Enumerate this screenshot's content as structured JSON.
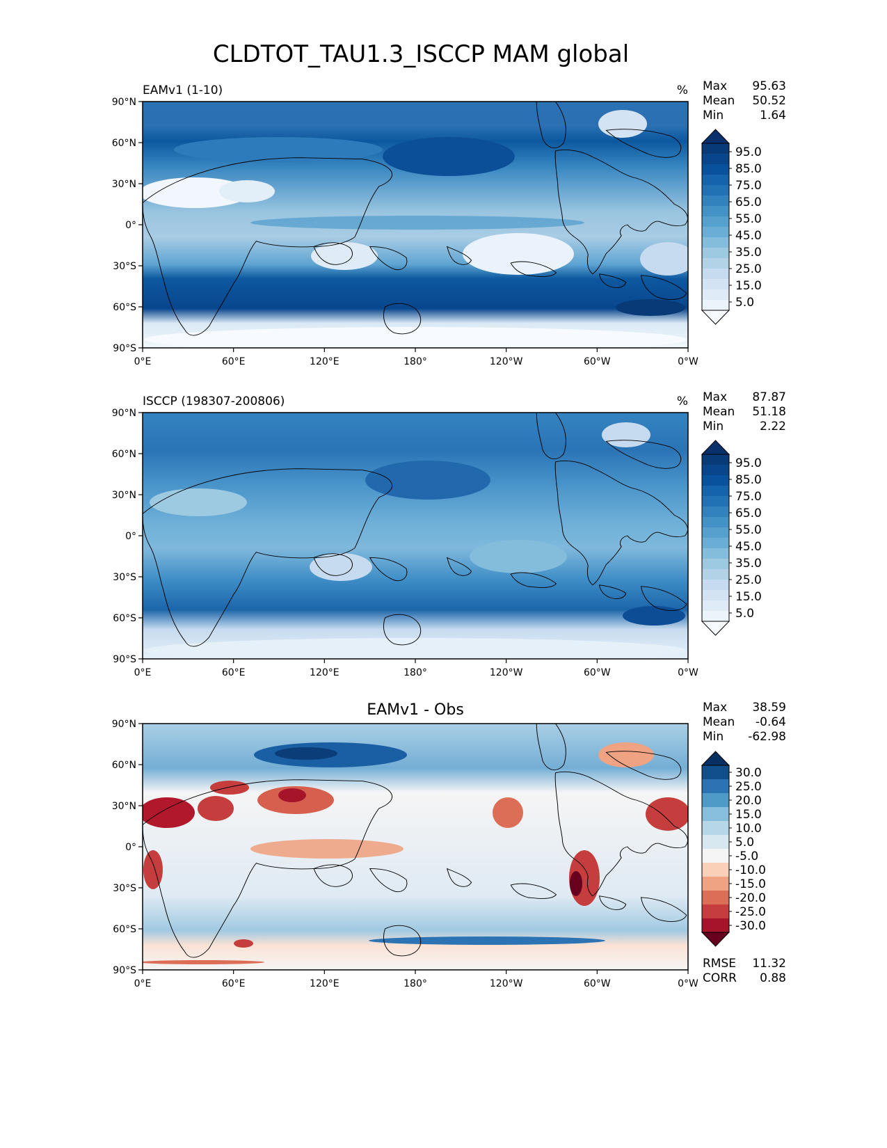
{
  "figure": {
    "title": "CLDTOT_TAU1.3_ISCCP MAM global"
  },
  "map_axes": {
    "x_ticks": [
      "0°E",
      "60°E",
      "120°E",
      "180°",
      "120°W",
      "60°W",
      "0°W"
    ],
    "y_ticks": [
      "90°N",
      "60°N",
      "30°N",
      "0°",
      "30°S",
      "60°S",
      "90°S"
    ],
    "x_range": [
      0,
      360
    ],
    "y_range": [
      -90,
      90
    ]
  },
  "chart_data": [
    {
      "type": "heatmap",
      "title_left": "EAMv1 (1-10)",
      "title_center": "",
      "units": "%",
      "stats": [
        {
          "label": "Max",
          "value": "95.63"
        },
        {
          "label": "Mean",
          "value": "50.52"
        },
        {
          "label": "Min",
          "value": "1.64"
        }
      ],
      "colorbar": {
        "levels": [
          0,
          5,
          10,
          15,
          20,
          25,
          30,
          35,
          40,
          45,
          50,
          55,
          60,
          65,
          70,
          75,
          80,
          85,
          90,
          95,
          100
        ],
        "tick_labels": [
          "95.0",
          "85.0",
          "75.0",
          "65.0",
          "55.0",
          "45.0",
          "35.0",
          "25.0",
          "15.0",
          "5.0"
        ],
        "colors": [
          "#f7fbff",
          "#ebf3fb",
          "#dfecf7",
          "#d3e3f3",
          "#c6dbef",
          "#b2d2e8",
          "#9ecae1",
          "#84bcdb",
          "#6aaed6",
          "#56a0ce",
          "#4292c6",
          "#3282be",
          "#2171b5",
          "#1563aa",
          "#08519c",
          "#08458a",
          "#083a78",
          "#08306b"
        ]
      },
      "extra_stats": []
    },
    {
      "type": "heatmap",
      "title_left": "ISCCP (198307-200806)",
      "title_center": "",
      "units": "%",
      "stats": [
        {
          "label": "Max",
          "value": "87.87"
        },
        {
          "label": "Mean",
          "value": "51.18"
        },
        {
          "label": "Min",
          "value": "2.22"
        }
      ],
      "colorbar": {
        "levels": [
          0,
          5,
          10,
          15,
          20,
          25,
          30,
          35,
          40,
          45,
          50,
          55,
          60,
          65,
          70,
          75,
          80,
          85,
          90,
          95,
          100
        ],
        "tick_labels": [
          "95.0",
          "85.0",
          "75.0",
          "65.0",
          "55.0",
          "45.0",
          "35.0",
          "25.0",
          "15.0",
          "5.0"
        ],
        "colors": [
          "#f7fbff",
          "#ebf3fb",
          "#dfecf7",
          "#d3e3f3",
          "#c6dbef",
          "#b2d2e8",
          "#9ecae1",
          "#84bcdb",
          "#6aaed6",
          "#56a0ce",
          "#4292c6",
          "#3282be",
          "#2171b5",
          "#1563aa",
          "#08519c",
          "#08458a",
          "#083a78",
          "#08306b"
        ]
      },
      "extra_stats": []
    },
    {
      "type": "heatmap",
      "title_left": "",
      "title_center": "EAMv1 - Obs",
      "units": "",
      "stats": [
        {
          "label": "Max",
          "value": "38.59"
        },
        {
          "label": "Mean",
          "value": "-0.64"
        },
        {
          "label": "Min",
          "value": "-62.98"
        }
      ],
      "colorbar": {
        "levels": [
          -35,
          -30,
          -25,
          -20,
          -15,
          -10,
          -5,
          5,
          10,
          15,
          20,
          25,
          30,
          35
        ],
        "tick_labels": [
          "30.0",
          "25.0",
          "20.0",
          "15.0",
          "10.0",
          "5.0",
          "-5.0",
          "-10.0",
          "-15.0",
          "-20.0",
          "-25.0",
          "-30.0"
        ],
        "colors": [
          "#67001f",
          "#a51429",
          "#c53e3d",
          "#dc6e57",
          "#f0a383",
          "#fbd0b9",
          "#f5f5f5",
          "#d7e8f1",
          "#b6d7e8",
          "#87bedc",
          "#4f9bc7",
          "#2b73b2",
          "#104f8a",
          "#053061"
        ]
      },
      "extra_stats": [
        {
          "label": "RMSE",
          "value": "11.32"
        },
        {
          "label": "CORR",
          "value": "0.88"
        }
      ]
    }
  ]
}
